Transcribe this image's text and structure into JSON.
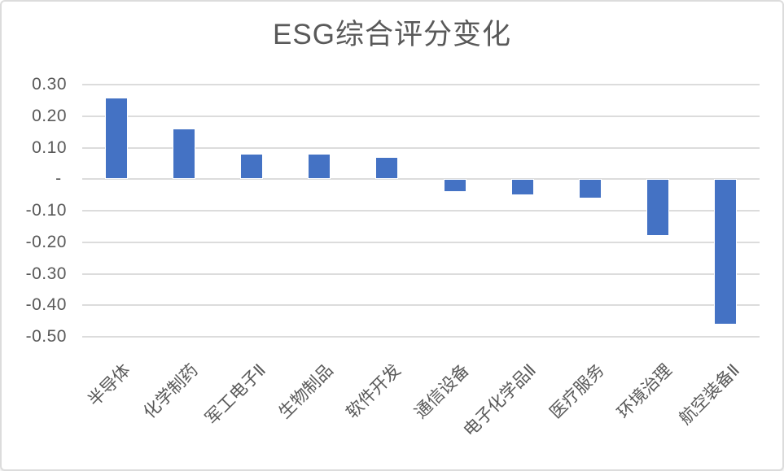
{
  "chart_data": {
    "type": "bar",
    "title": "ESG综合评分变化",
    "categories": [
      "半导体",
      "化学制药",
      "军工电子Ⅱ",
      "生物制品",
      "软件开发",
      "通信设备",
      "电子化学品Ⅱ",
      "医疗服务",
      "环境治理",
      "航空装备Ⅱ"
    ],
    "values": [
      0.26,
      0.16,
      0.08,
      0.08,
      0.07,
      -0.04,
      -0.05,
      -0.06,
      -0.18,
      -0.46
    ],
    "xlabel": "",
    "ylabel": "",
    "ylim": [
      -0.5,
      0.3
    ],
    "grid": true,
    "legend_position": "none",
    "y_axis": {
      "min": -0.5,
      "max": 0.3,
      "step": 0.1,
      "tick_labels": [
        "0.30",
        "0.20",
        "0.10",
        "- ",
        "-0.10",
        "-0.20",
        "-0.30",
        "-0.40",
        "-0.50"
      ]
    },
    "colors": {
      "bar_fill": "#4472C4",
      "bar_edge": "#FFFFFF",
      "gridline": "#DCDCDC",
      "axis_text": "#595959",
      "title_text": "#595959",
      "frame_border": "#DCDCDC",
      "background": "#FFFFFF"
    }
  }
}
